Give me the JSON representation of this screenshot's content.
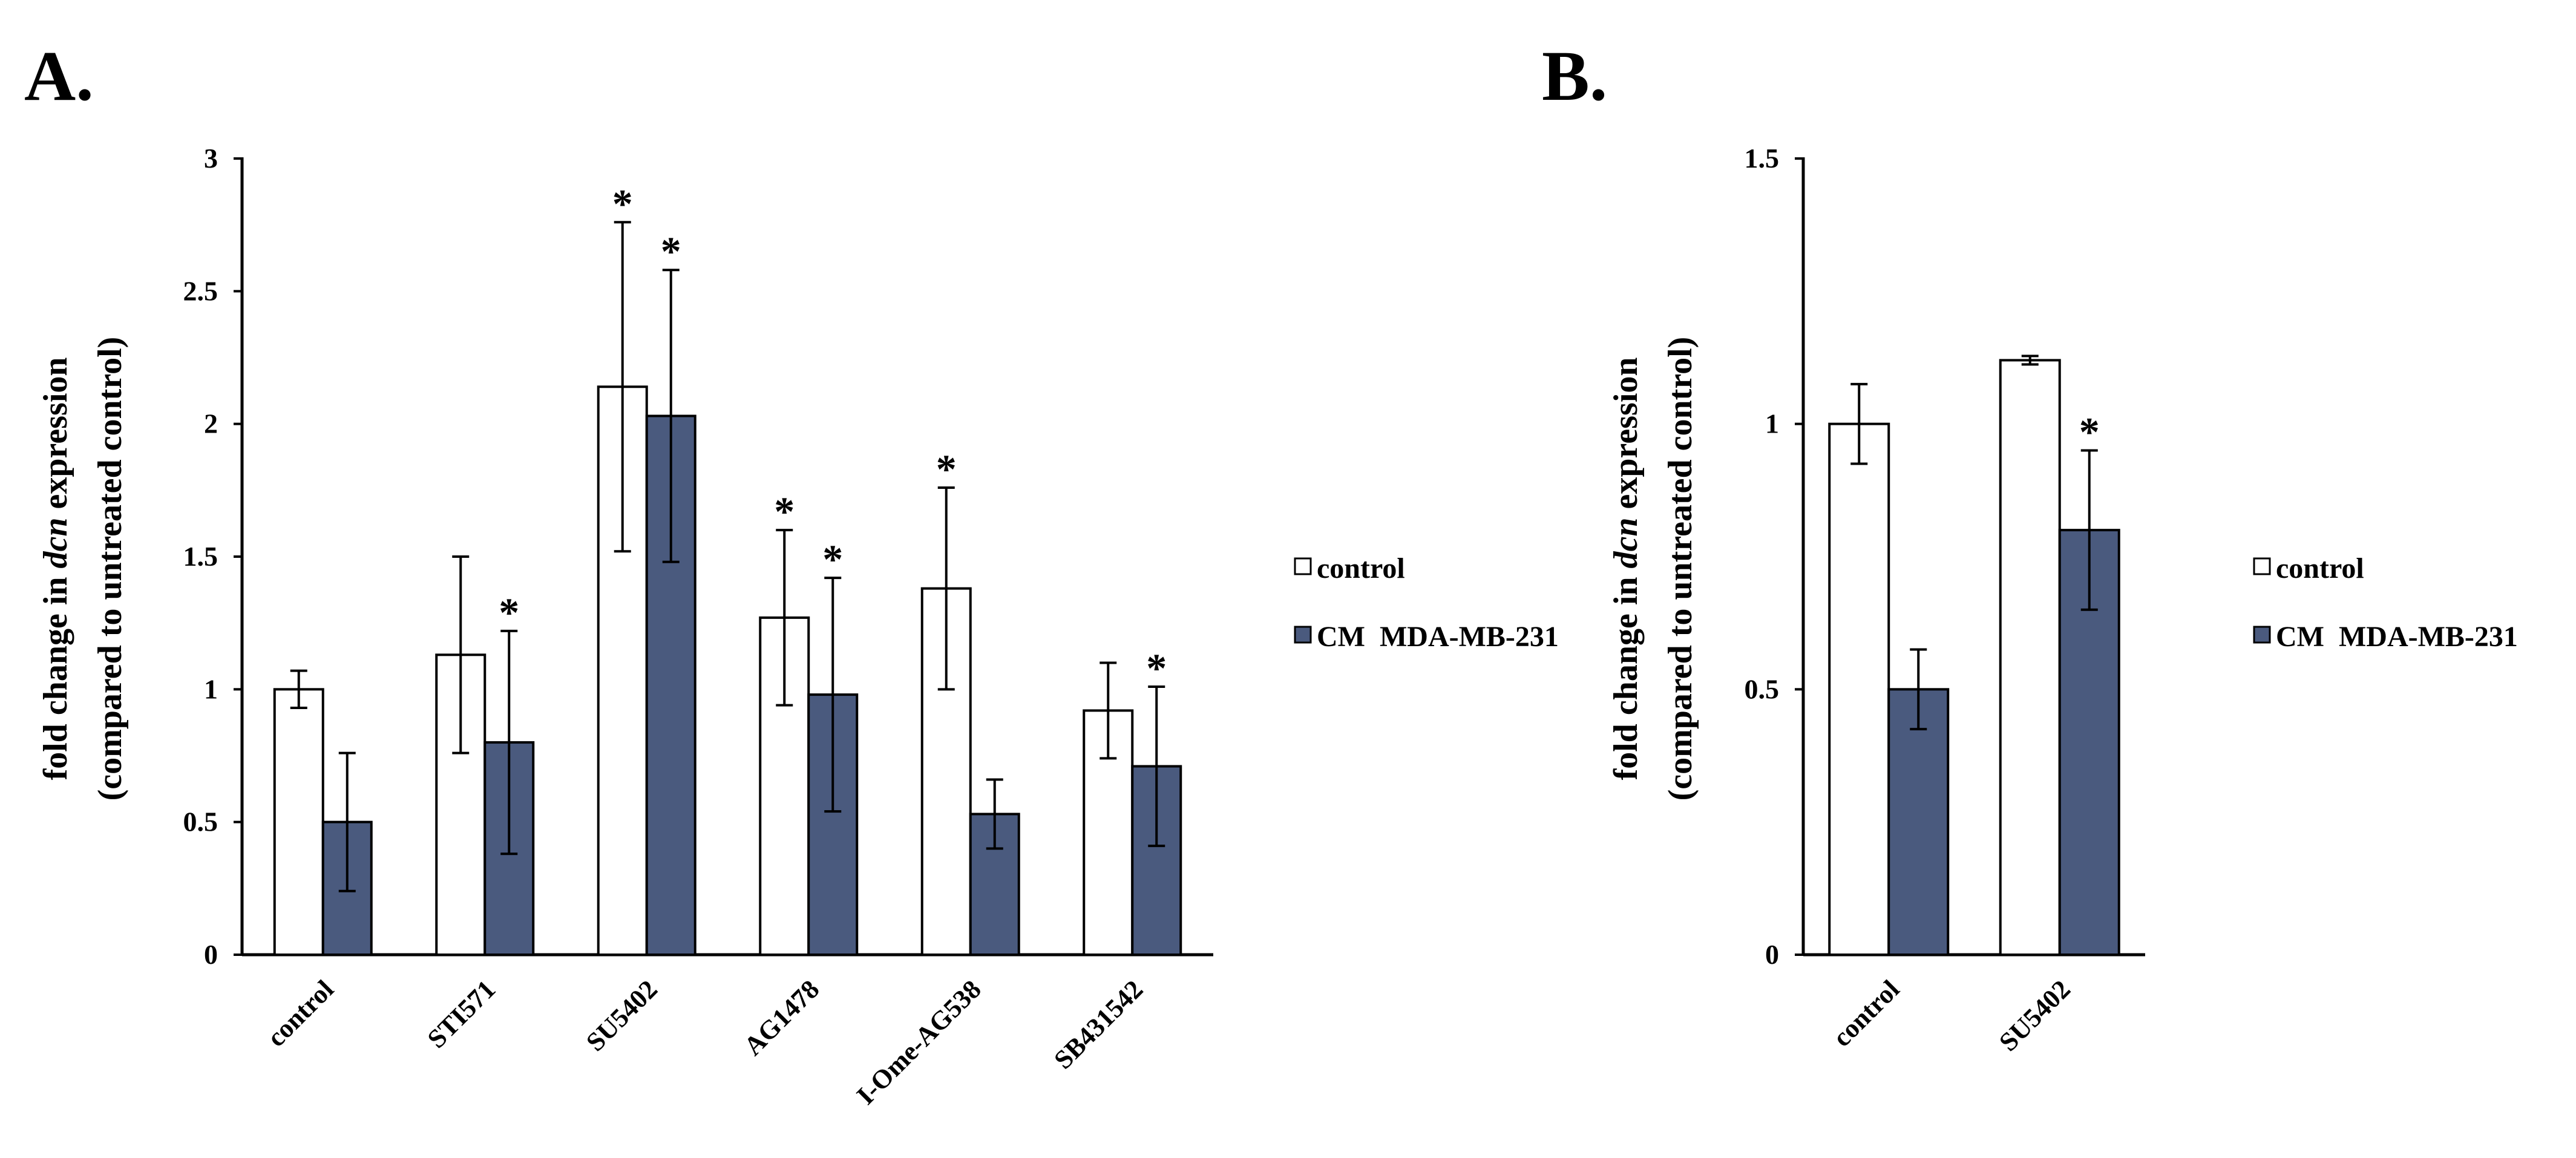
{
  "figure": {
    "panel_a_label": "A.",
    "panel_b_label": "B."
  },
  "chart_data": [
    {
      "type": "bar",
      "panel": "A.",
      "title": "",
      "xlabel": "",
      "ylabel_line1": "fold change in dcn expression",
      "ylabel_line2": "(compared to untreated control)",
      "ylabel_prefix": "fold change in ",
      "ylabel_italic": "dcn",
      "ylabel_suffix": " expression",
      "ylim": [
        0,
        3
      ],
      "yticks": [
        "0",
        "0.5",
        "1",
        "1.5",
        "2",
        "2.5",
        "3"
      ],
      "ytick_values": [
        0,
        0.5,
        1,
        1.5,
        2,
        2.5,
        3
      ],
      "grid": false,
      "legend_placement": "right",
      "categories": [
        "control",
        "STI571",
        "SU5402",
        "AG1478",
        "I-Ome-AG538",
        "SB431542"
      ],
      "series": [
        {
          "name": "control",
          "color": "#ffffff",
          "values": [
            1.0,
            1.13,
            2.14,
            1.27,
            1.38,
            0.92
          ],
          "errors": [
            0.07,
            0.37,
            0.62,
            0.33,
            0.38,
            0.18
          ],
          "significant": [
            false,
            false,
            true,
            true,
            true,
            false
          ]
        },
        {
          "name": "CM  MDA-MB-231",
          "color": "#4a5a7e",
          "values": [
            0.5,
            0.8,
            2.03,
            0.98,
            0.53,
            0.71
          ],
          "errors": [
            0.26,
            0.42,
            0.55,
            0.44,
            0.13,
            0.3
          ],
          "significant": [
            false,
            true,
            true,
            true,
            false,
            true
          ]
        }
      ],
      "significance_marker": "*"
    },
    {
      "type": "bar",
      "panel": "B.",
      "title": "",
      "xlabel": "",
      "ylabel_line1": "fold change in dcn expression",
      "ylabel_line2": "(compared to untreated control)",
      "ylabel_prefix": "fold change in ",
      "ylabel_italic": "dcn",
      "ylabel_suffix": " expression",
      "ylim": [
        0,
        1.5
      ],
      "yticks": [
        "0",
        "0.5",
        "1",
        "1.5"
      ],
      "ytick_values": [
        0,
        0.5,
        1,
        1.5
      ],
      "grid": false,
      "legend_placement": "right",
      "categories": [
        "control",
        "SU5402"
      ],
      "series": [
        {
          "name": "control",
          "color": "#ffffff",
          "values": [
            1.0,
            1.12
          ],
          "errors": [
            0.075,
            0.008
          ],
          "significant": [
            false,
            false
          ]
        },
        {
          "name": "CM  MDA-MB-231",
          "color": "#4a5a7e",
          "values": [
            0.5,
            0.8
          ],
          "errors": [
            0.075,
            0.15
          ],
          "significant": [
            false,
            true
          ]
        }
      ],
      "significance_marker": "*"
    }
  ]
}
